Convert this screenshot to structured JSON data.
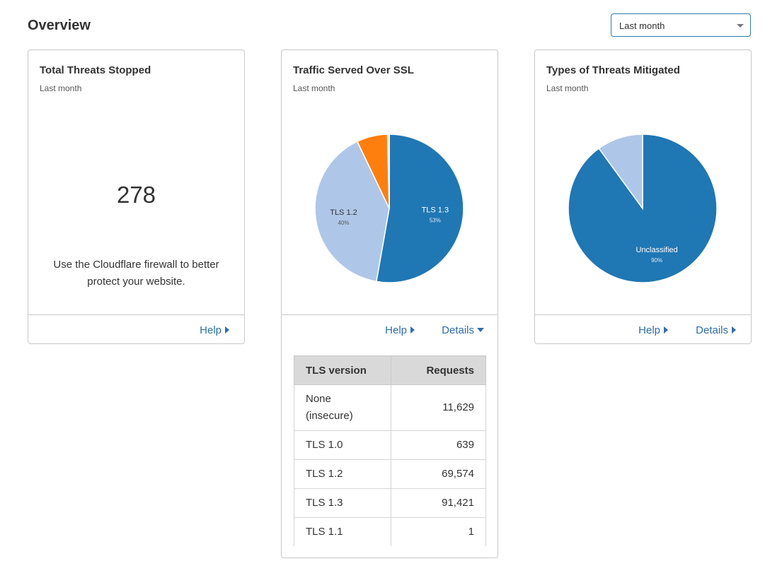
{
  "header": {
    "title": "Overview",
    "period_select": {
      "value": "Last month"
    }
  },
  "colors": {
    "primary_blue": "#1f77b4",
    "light_blue": "#aec7e8",
    "orange": "#ff7f0e",
    "link": "#2c6eab"
  },
  "threats_card": {
    "title": "Total Threats Stopped",
    "subtitle": "Last month",
    "count": "278",
    "message": "Use the Cloudflare firewall to better protect your website.",
    "help_label": "Help"
  },
  "ssl_card": {
    "title": "Traffic Served Over SSL",
    "subtitle": "Last month",
    "help_label": "Help",
    "details_label": "Details",
    "table": {
      "headers": [
        "TLS version",
        "Requests"
      ],
      "rows": [
        {
          "version": "None (insecure)",
          "requests": "11,629"
        },
        {
          "version": "TLS 1.0",
          "requests": "639"
        },
        {
          "version": "TLS 1.2",
          "requests": "69,574"
        },
        {
          "version": "TLS 1.3",
          "requests": "91,421"
        },
        {
          "version": "TLS 1.1",
          "requests": "1"
        }
      ]
    }
  },
  "threat_types_card": {
    "title": "Types of Threats Mitigated",
    "subtitle": "Last month",
    "help_label": "Help",
    "details_label": "Details"
  },
  "chart_data": [
    {
      "type": "pie",
      "slices": [
        {
          "label": "TLS 1.3",
          "pct_label": "53%",
          "value": 91421,
          "color": "#1f77b4"
        },
        {
          "label": "TLS 1.2",
          "pct_label": "40%",
          "value": 69574,
          "color": "#aec7e8"
        },
        {
          "label": "",
          "value": 11629,
          "color": "#ff7f0e"
        },
        {
          "label": "",
          "value": 639,
          "color": "#ffbb78"
        },
        {
          "label": "",
          "value": 1,
          "color": "#2ca02c"
        }
      ]
    },
    {
      "type": "pie",
      "slices": [
        {
          "label": "Unclassified",
          "pct_label": "90%",
          "value": 90,
          "color": "#1f77b4"
        },
        {
          "label": "",
          "value": 10,
          "color": "#aec7e8"
        }
      ]
    }
  ]
}
